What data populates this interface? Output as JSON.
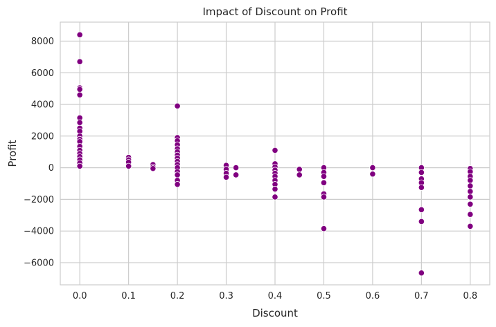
{
  "chart_data": {
    "type": "scatter",
    "title": "Impact of Discount on Profit",
    "xlabel": "Discount",
    "ylabel": "Profit",
    "xlim": [
      -0.04,
      0.84
    ],
    "ylim": [
      -7400,
      9200
    ],
    "grid": true,
    "point_color": "#800080",
    "xticks": [
      0.0,
      0.1,
      0.2,
      0.3,
      0.4,
      0.5,
      0.6,
      0.7,
      0.8
    ],
    "xtick_labels": [
      "0.0",
      "0.1",
      "0.2",
      "0.3",
      "0.4",
      "0.5",
      "0.6",
      "0.7",
      "0.8"
    ],
    "yticks": [
      -6000,
      -4000,
      -2000,
      0,
      2000,
      4000,
      6000,
      8000
    ],
    "ytick_labels": [
      "−6000",
      "−4000",
      "−2000",
      "0",
      "2000",
      "4000",
      "6000",
      "8000"
    ],
    "points": [
      {
        "x": 0.0,
        "y": 8400
      },
      {
        "x": 0.0,
        "y": 6700
      },
      {
        "x": 0.0,
        "y": 5050
      },
      {
        "x": 0.0,
        "y": 4950
      },
      {
        "x": 0.0,
        "y": 4600
      },
      {
        "x": 0.0,
        "y": 3150
      },
      {
        "x": 0.0,
        "y": 2850
      },
      {
        "x": 0.0,
        "y": 2500
      },
      {
        "x": 0.0,
        "y": 2300
      },
      {
        "x": 0.0,
        "y": 2000
      },
      {
        "x": 0.0,
        "y": 1800
      },
      {
        "x": 0.0,
        "y": 1650
      },
      {
        "x": 0.0,
        "y": 1350
      },
      {
        "x": 0.0,
        "y": 1100
      },
      {
        "x": 0.0,
        "y": 900
      },
      {
        "x": 0.0,
        "y": 700
      },
      {
        "x": 0.0,
        "y": 500
      },
      {
        "x": 0.0,
        "y": 300
      },
      {
        "x": 0.0,
        "y": 100
      },
      {
        "x": 0.1,
        "y": 650
      },
      {
        "x": 0.1,
        "y": 500
      },
      {
        "x": 0.1,
        "y": 350
      },
      {
        "x": 0.1,
        "y": 100
      },
      {
        "x": 0.15,
        "y": 200
      },
      {
        "x": 0.15,
        "y": 50
      },
      {
        "x": 0.15,
        "y": -50
      },
      {
        "x": 0.2,
        "y": 3900
      },
      {
        "x": 0.2,
        "y": 1900
      },
      {
        "x": 0.2,
        "y": 1700
      },
      {
        "x": 0.2,
        "y": 1450
      },
      {
        "x": 0.2,
        "y": 1200
      },
      {
        "x": 0.2,
        "y": 1000
      },
      {
        "x": 0.2,
        "y": 800
      },
      {
        "x": 0.2,
        "y": 600
      },
      {
        "x": 0.2,
        "y": 400
      },
      {
        "x": 0.2,
        "y": 200
      },
      {
        "x": 0.2,
        "y": 0
      },
      {
        "x": 0.2,
        "y": -250
      },
      {
        "x": 0.2,
        "y": -450
      },
      {
        "x": 0.2,
        "y": -800
      },
      {
        "x": 0.2,
        "y": -1050
      },
      {
        "x": 0.3,
        "y": 150
      },
      {
        "x": 0.3,
        "y": -100
      },
      {
        "x": 0.3,
        "y": -350
      },
      {
        "x": 0.3,
        "y": -600
      },
      {
        "x": 0.32,
        "y": 0
      },
      {
        "x": 0.32,
        "y": -450
      },
      {
        "x": 0.4,
        "y": 1100
      },
      {
        "x": 0.4,
        "y": 250
      },
      {
        "x": 0.4,
        "y": 50
      },
      {
        "x": 0.4,
        "y": -150
      },
      {
        "x": 0.4,
        "y": -350
      },
      {
        "x": 0.4,
        "y": -550
      },
      {
        "x": 0.4,
        "y": -800
      },
      {
        "x": 0.4,
        "y": -1050
      },
      {
        "x": 0.4,
        "y": -1350
      },
      {
        "x": 0.4,
        "y": -1850
      },
      {
        "x": 0.45,
        "y": -100
      },
      {
        "x": 0.45,
        "y": -450
      },
      {
        "x": 0.5,
        "y": 0
      },
      {
        "x": 0.5,
        "y": -300
      },
      {
        "x": 0.5,
        "y": -550
      },
      {
        "x": 0.5,
        "y": -950
      },
      {
        "x": 0.5,
        "y": -1650
      },
      {
        "x": 0.5,
        "y": -1850
      },
      {
        "x": 0.5,
        "y": -3850
      },
      {
        "x": 0.6,
        "y": 0
      },
      {
        "x": 0.6,
        "y": -400
      },
      {
        "x": 0.7,
        "y": 0
      },
      {
        "x": 0.7,
        "y": -300
      },
      {
        "x": 0.7,
        "y": -700
      },
      {
        "x": 0.7,
        "y": -950
      },
      {
        "x": 0.7,
        "y": -1250
      },
      {
        "x": 0.7,
        "y": -2650
      },
      {
        "x": 0.7,
        "y": -3400
      },
      {
        "x": 0.7,
        "y": -6650
      },
      {
        "x": 0.8,
        "y": -50
      },
      {
        "x": 0.8,
        "y": -250
      },
      {
        "x": 0.8,
        "y": -550
      },
      {
        "x": 0.8,
        "y": -800
      },
      {
        "x": 0.8,
        "y": -1150
      },
      {
        "x": 0.8,
        "y": -1500
      },
      {
        "x": 0.8,
        "y": -1850
      },
      {
        "x": 0.8,
        "y": -2300
      },
      {
        "x": 0.8,
        "y": -2950
      },
      {
        "x": 0.8,
        "y": -3700
      }
    ]
  }
}
